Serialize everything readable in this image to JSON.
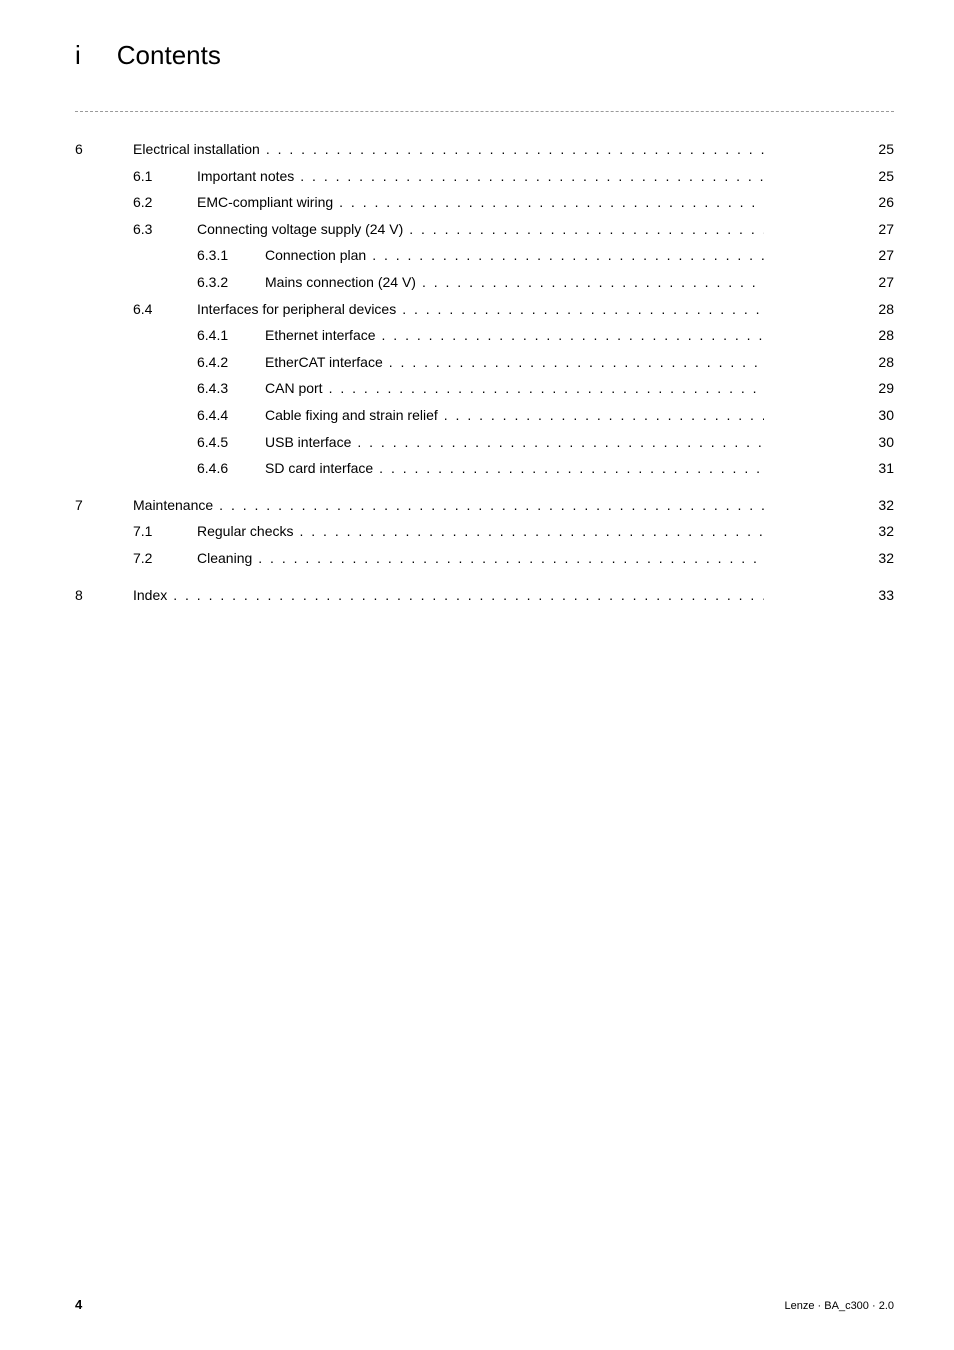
{
  "header": {
    "marker": "i",
    "title": "Contents"
  },
  "toc": [
    {
      "level": 1,
      "chapter": "6",
      "title": "Electrical installation",
      "page": "25"
    },
    {
      "level": 2,
      "section": "6.1",
      "title": "Important notes",
      "page": "25"
    },
    {
      "level": 2,
      "section": "6.2",
      "title": "EMC-compliant wiring",
      "page": "26"
    },
    {
      "level": 2,
      "section": "6.3",
      "title": "Connecting voltage supply (24 V)",
      "page": "27"
    },
    {
      "level": 3,
      "sub": "6.3.1",
      "title": "Connection plan",
      "page": "27"
    },
    {
      "level": 3,
      "sub": "6.3.2",
      "title": "Mains connection (24 V)",
      "page": "27"
    },
    {
      "level": 2,
      "section": "6.4",
      "title": "Interfaces for peripheral devices",
      "page": "28"
    },
    {
      "level": 3,
      "sub": "6.4.1",
      "title": "Ethernet interface",
      "page": "28"
    },
    {
      "level": 3,
      "sub": "6.4.2",
      "title": "EtherCAT interface",
      "page": "28"
    },
    {
      "level": 3,
      "sub": "6.4.3",
      "title": "CAN port",
      "page": "29"
    },
    {
      "level": 3,
      "sub": "6.4.4",
      "title": "Cable fixing and strain relief",
      "page": "30"
    },
    {
      "level": 3,
      "sub": "6.4.5",
      "title": "USB interface",
      "page": "30"
    },
    {
      "level": 3,
      "sub": "6.4.6",
      "title": "SD card interface",
      "page": "31"
    },
    {
      "gap": true
    },
    {
      "level": 1,
      "chapter": "7",
      "title": "Maintenance",
      "page": "32"
    },
    {
      "level": 2,
      "section": "7.1",
      "title": "Regular checks",
      "page": "32"
    },
    {
      "level": 2,
      "section": "7.2",
      "title": "Cleaning",
      "page": "32"
    },
    {
      "gap": true
    },
    {
      "level": 1,
      "chapter": "8",
      "title": "Index",
      "page": "33"
    }
  ],
  "footer": {
    "page_number": "4",
    "doc_info": "Lenze · BA_c300 · 2.0"
  }
}
